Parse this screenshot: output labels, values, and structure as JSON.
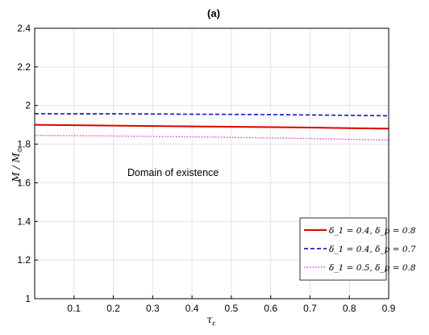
{
  "chart_data": {
    "type": "line",
    "title": "(a)",
    "xlabel": "τ_ε",
    "ylabel": "M / M_⊙",
    "xlim": [
      0,
      0.9
    ],
    "ylim": [
      1,
      2.4
    ],
    "xticks": [
      0.1,
      0.2,
      0.3,
      0.4,
      0.5,
      0.6,
      0.7,
      0.8,
      0.9
    ],
    "xtick_labels": [
      "0.1",
      "0.2",
      "0.3",
      "0.4",
      "0.5",
      "0.6",
      "0.7",
      "0.8",
      "0.9"
    ],
    "yticks": [
      1,
      1.2,
      1.4,
      1.6,
      1.8,
      2,
      2.2,
      2.4
    ],
    "ytick_labels": [
      "1",
      "1.2",
      "1.4",
      "1.6",
      "1.8",
      "2",
      "2.2",
      "2.4"
    ],
    "grid": true,
    "legend_position": "bottom-right",
    "annotation": "Domain of existence",
    "x": [
      0.0,
      0.1,
      0.2,
      0.3,
      0.4,
      0.5,
      0.6,
      0.7,
      0.8,
      0.9
    ],
    "series": [
      {
        "name": "δ_1 = 0.4, δ_p = 0.8",
        "color": "#e00000",
        "style": "solid",
        "values": [
          1.9,
          1.898,
          1.896,
          1.894,
          1.892,
          1.89,
          1.888,
          1.886,
          1.883,
          1.88
        ]
      },
      {
        "name": "δ_1 = 0.4, δ_p = 0.7",
        "color": "#1f1fd0",
        "style": "dashed",
        "values": [
          1.958,
          1.957,
          1.957,
          1.956,
          1.955,
          1.954,
          1.953,
          1.951,
          1.949,
          1.947
        ]
      },
      {
        "name": "δ_1 = 0.5, δ_p = 0.8",
        "color": "#e040e0",
        "style": "dotted",
        "values": [
          1.845,
          1.844,
          1.842,
          1.84,
          1.838,
          1.835,
          1.832,
          1.829,
          1.825,
          1.821
        ]
      }
    ]
  }
}
